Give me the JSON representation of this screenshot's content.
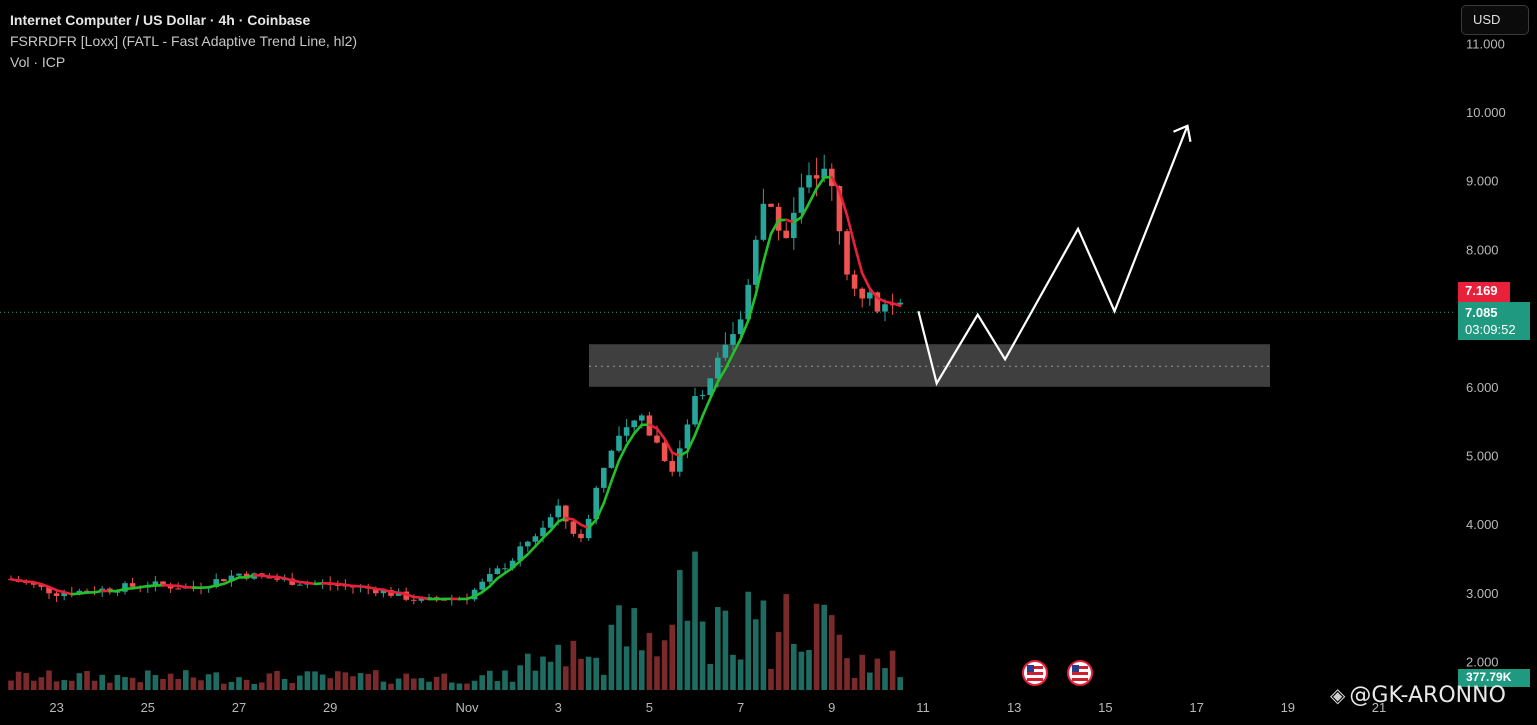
{
  "legend": {
    "title": "Internet Computer / US Dollar · 4h · Coinbase",
    "indicator": "FSRRDFR [Loxx] (FATL - Fast Adaptive Trend Line, hl2)",
    "volume": "Vol · ICP"
  },
  "currency_button": "USD",
  "price_tags": {
    "last_red": "7.169",
    "last_green": "7.085",
    "countdown": "03:09:52",
    "volume": "377.79K"
  },
  "watermark": "@GK-ARONNO",
  "colors": {
    "background": "#000000",
    "up": "#26a69a",
    "down": "#ef5350",
    "trend_up": "#22c02a",
    "trend_down": "#e8203a",
    "vol_up": "#1e6b62",
    "vol_down": "#7a2a2a",
    "zone": "#4a4a4a",
    "projection": "#ffffff"
  },
  "chart_data": {
    "type": "candlestick",
    "symbol": "Internet Computer / US Dollar",
    "interval": "4h",
    "exchange": "Coinbase",
    "y_ticks": [
      "2.000",
      "3.000",
      "4.000",
      "5.000",
      "6.000",
      "7.000",
      "8.000",
      "9.000",
      "10.000",
      "11.000"
    ],
    "x_ticks": [
      "23",
      "25",
      "27",
      "29",
      "Nov",
      "3",
      "5",
      "7",
      "9",
      "11",
      "13",
      "15",
      "17",
      "19",
      "21"
    ],
    "ylim": [
      1.85,
      11.05
    ],
    "price_path": [
      [
        "Oct 22",
        3.2
      ],
      [
        "Oct 23",
        3.0
      ],
      [
        "Oct 24",
        3.05
      ],
      [
        "Oct 25",
        3.12
      ],
      [
        "Oct 26",
        3.08
      ],
      [
        "Oct 27",
        3.28
      ],
      [
        "Oct 28",
        3.18
      ],
      [
        "Oct 29",
        3.12
      ],
      [
        "Oct 30",
        3.05
      ],
      [
        "Oct 31",
        2.88
      ],
      [
        "Nov 1",
        2.95
      ],
      [
        "Nov 2",
        3.5
      ],
      [
        "Nov 3",
        4.2
      ],
      [
        "Nov 3.5",
        3.75
      ],
      [
        "Nov 4",
        4.9
      ],
      [
        "Nov 4.8",
        5.6
      ],
      [
        "Nov 5.5",
        4.8
      ],
      [
        "Nov 6",
        5.8
      ],
      [
        "Nov 7",
        6.9
      ],
      [
        "Nov 7.5",
        8.7
      ],
      [
        "Nov 8",
        8.3
      ],
      [
        "Nov 8.5",
        9.2
      ],
      [
        "Nov 9",
        8.9
      ],
      [
        "Nov 9.3",
        7.7
      ],
      [
        "Nov 10",
        7.1
      ],
      [
        "Nov 10.6",
        7.085
      ]
    ],
    "support_zone": {
      "low": 6.0,
      "high": 6.62,
      "mid": 6.3
    },
    "last_price": 7.085,
    "prev_close": 7.169,
    "projection": [
      [
        "Nov 10.9",
        7.1
      ],
      [
        "Nov 11.3",
        6.05
      ],
      [
        "Nov 12.2",
        7.05
      ],
      [
        "Nov 12.8",
        6.4
      ],
      [
        "Nov 14.4",
        8.3
      ],
      [
        "Nov 15.2",
        7.1
      ],
      [
        "Nov 16.8",
        9.8
      ]
    ],
    "volume_last": "377.79K",
    "markers": [
      "us-flag-icon",
      "us-flag-icon"
    ]
  }
}
